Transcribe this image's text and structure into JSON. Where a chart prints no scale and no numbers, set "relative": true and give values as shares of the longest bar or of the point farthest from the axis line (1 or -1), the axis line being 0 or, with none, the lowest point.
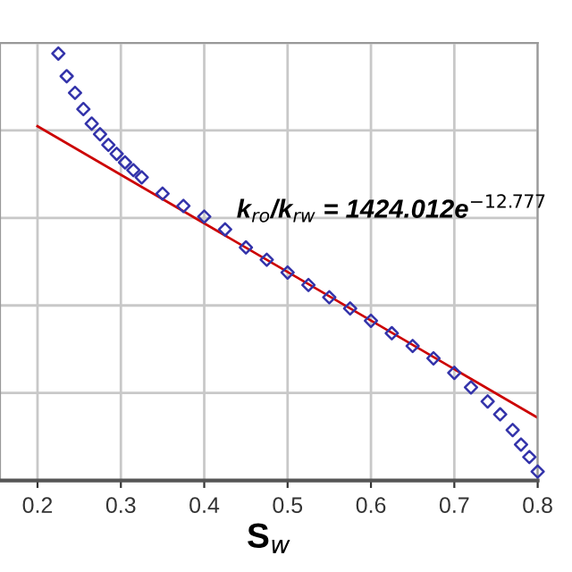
{
  "chart_data": {
    "type": "scatter",
    "relative": true,
    "xlabel": "S$_{w}$",
    "annotations": [
      "k$_{ro}$/k$_{rw}$ = 1424.012e$^{−12.777}$"
    ],
    "xlim": [
      0.155,
      0.8
    ],
    "xticks": [
      0.2,
      0.3,
      0.4,
      0.5,
      0.6,
      0.7,
      0.8
    ],
    "grid": true,
    "marker": "diamond",
    "series": [
      {
        "color": "#3333aa",
        "x": [
          0.225,
          0.235,
          0.245,
          0.255,
          0.265,
          0.275,
          0.285,
          0.295,
          0.305,
          0.315,
          0.325,
          0.35,
          0.375,
          0.4,
          0.425,
          0.45,
          0.475,
          0.5,
          0.525,
          0.55,
          0.575,
          0.6,
          0.625,
          0.65,
          0.675,
          0.7,
          0.72,
          0.74,
          0.755,
          0.77,
          0.78,
          0.79,
          0.8
        ],
        "values": [
          1.0,
          0.947,
          0.908,
          0.87,
          0.836,
          0.811,
          0.786,
          0.765,
          0.745,
          0.727,
          0.71,
          0.672,
          0.643,
          0.618,
          0.588,
          0.546,
          0.517,
          0.487,
          0.458,
          0.429,
          0.403,
          0.374,
          0.345,
          0.315,
          0.286,
          0.252,
          0.218,
          0.185,
          0.155,
          0.118,
          0.084,
          0.055,
          0.021
        ]
      },
      {
        "type": "line",
        "color": "#cc0000",
        "marker": "none",
        "line_style": "solid",
        "x": [
          0.2,
          0.8
        ],
        "values": [
          0.83,
          0.147
        ]
      }
    ]
  }
}
